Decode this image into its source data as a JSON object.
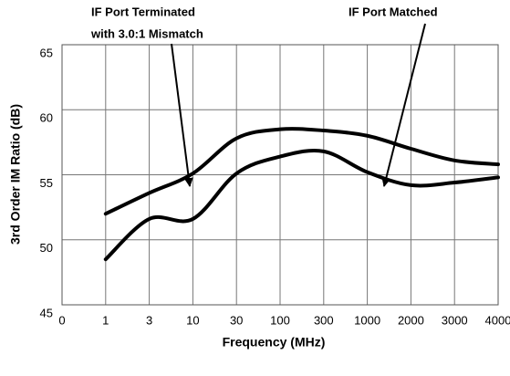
{
  "chart_data": {
    "type": "line",
    "x_label": "Frequency (MHz)",
    "y_label": "3rd Order IM Ratio (dB)",
    "categories": [
      "0",
      "1",
      "3",
      "10",
      "30",
      "100",
      "300",
      "1000",
      "2000",
      "3000",
      "4000"
    ],
    "series": [
      {
        "color": "#000000",
        "values": [
          null,
          52.0,
          53.6,
          55.1,
          57.8,
          58.5,
          58.4,
          58.0,
          57.0,
          56.1,
          55.8
        ]
      },
      {
        "color": "#000000",
        "values": [
          null,
          48.5,
          51.6,
          51.6,
          55.1,
          56.4,
          56.8,
          55.2,
          54.2,
          54.4,
          54.8
        ]
      }
    ],
    "ylim": [
      45,
      65
    ],
    "yticks": [
      45,
      50,
      55,
      60,
      65
    ],
    "grid": true,
    "annotations": [
      "IF Port Terminated",
      "with 3.0:1 Mismatch",
      "IF Port Matched"
    ]
  }
}
